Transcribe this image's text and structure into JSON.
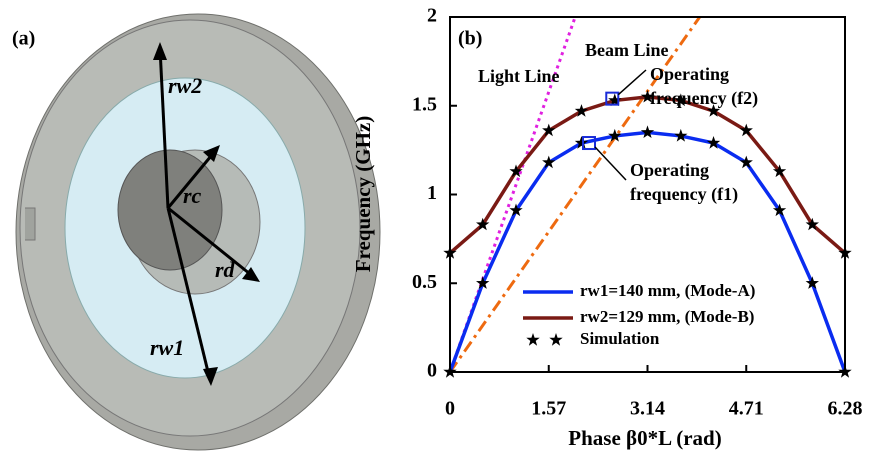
{
  "panel_a": {
    "label": "(a)",
    "radii": [
      "rw2",
      "rc",
      "rd",
      "rw1"
    ]
  },
  "chart_data": {
    "type": "line",
    "panel_label": "(b)",
    "x_label": "Phase β0*L (rad)",
    "y_label": "Frequency (GHz)",
    "xlim": [
      0,
      6.28
    ],
    "ylim": [
      0,
      2
    ],
    "xticks": [
      0,
      1.57,
      3.14,
      4.71,
      6.28
    ],
    "yticks": [
      0,
      0.5,
      1,
      1.5,
      2
    ],
    "x": [
      0,
      0.52,
      1.05,
      1.57,
      2.09,
      2.62,
      3.14,
      3.67,
      4.19,
      4.71,
      5.24,
      5.76,
      6.28
    ],
    "series": [
      {
        "name": "rw1=140 mm, (Mode-A)",
        "color": "#0a2cf0",
        "values": [
          0,
          0.5,
          0.91,
          1.18,
          1.29,
          1.33,
          1.35,
          1.33,
          1.29,
          1.18,
          0.91,
          0.5,
          0
        ]
      },
      {
        "name": "rw2=129 mm, (Mode-B)",
        "color": "#7a1a14",
        "values": [
          0.67,
          0.83,
          1.13,
          1.36,
          1.47,
          1.53,
          1.55,
          1.53,
          1.47,
          1.36,
          1.13,
          0.83,
          0.67
        ]
      }
    ],
    "marker_label": "Simulation",
    "reference_lines": [
      {
        "name": "Light Line",
        "color": "#e020e0",
        "x": [
          0,
          1.99
        ],
        "values": [
          0,
          2
        ]
      },
      {
        "name": "Beam Line",
        "color": "#ee6a10",
        "x": [
          0,
          3.97
        ],
        "values": [
          0,
          2
        ]
      }
    ],
    "operating_points": [
      {
        "label1": "Operating",
        "label2": "frequency (f2)",
        "x": 2.58,
        "y": 1.54
      },
      {
        "label1": "Operating",
        "label2": "frequency (f1)",
        "x": 2.21,
        "y": 1.29
      }
    ]
  }
}
